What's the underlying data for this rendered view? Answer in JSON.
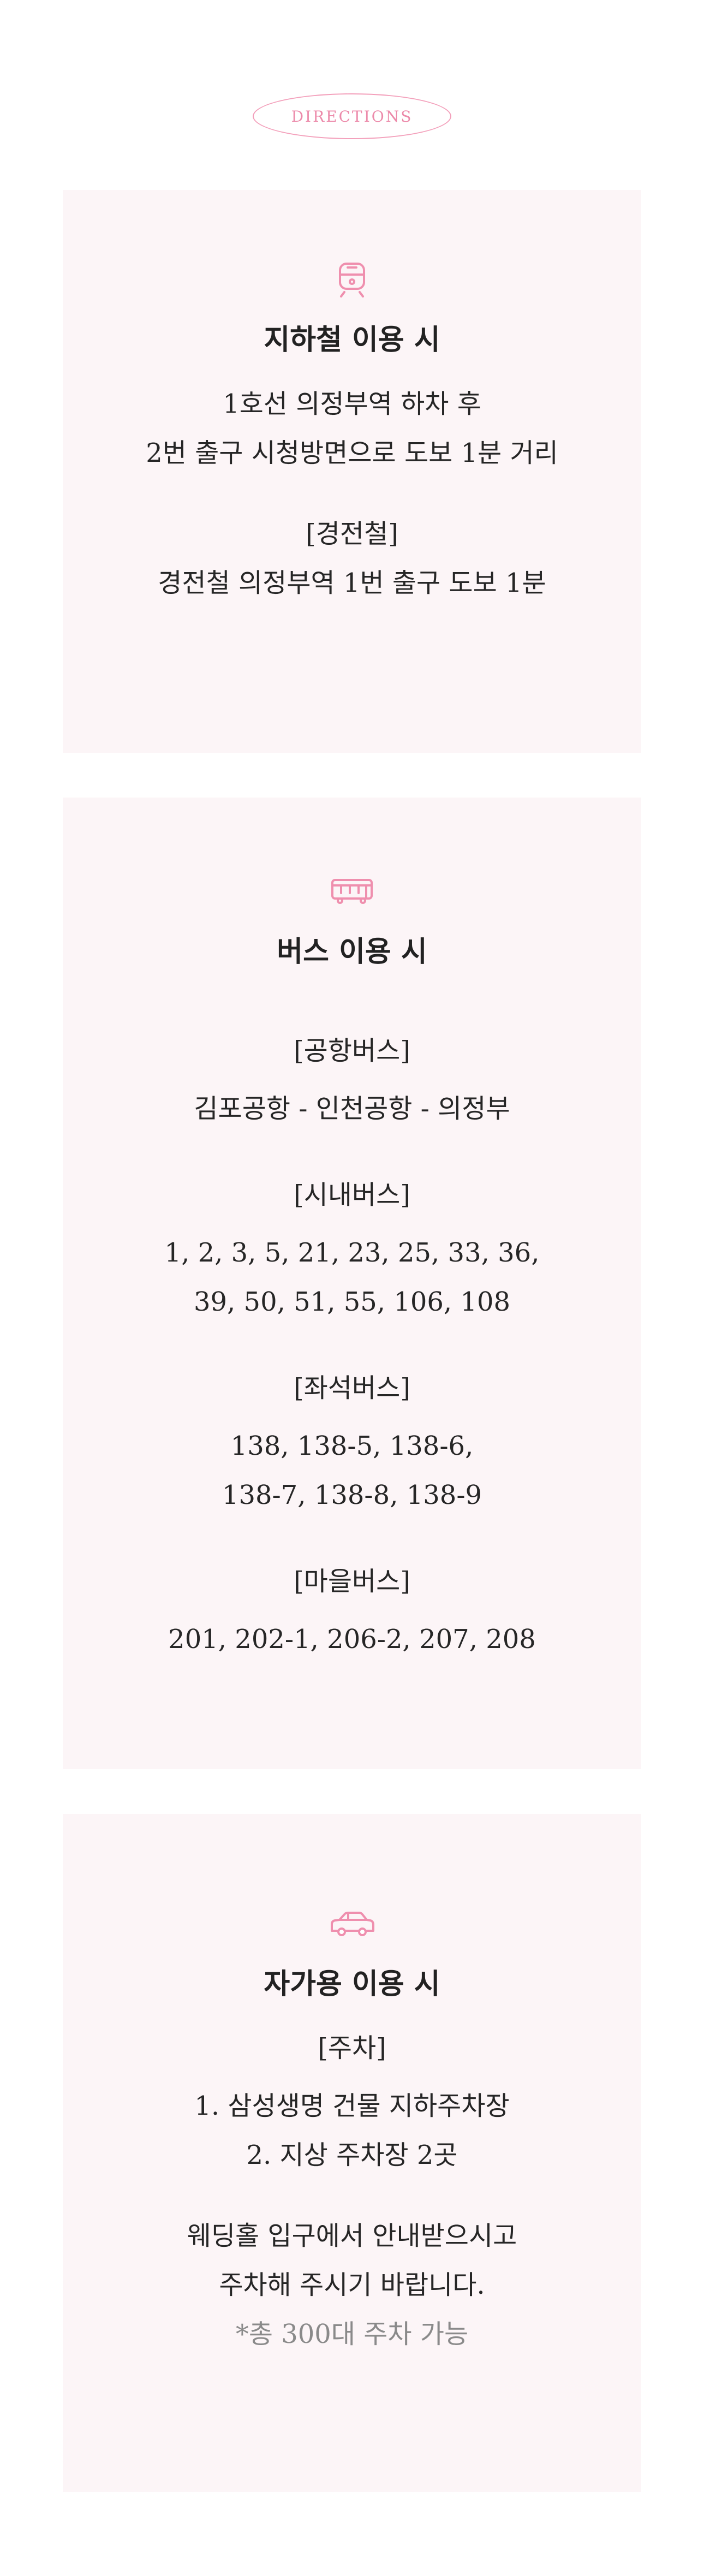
{
  "header": {
    "badge_label": "DIRECTIONS"
  },
  "colors": {
    "accent": "#ef8fae",
    "card_bg": "#fcf5f7",
    "note_text": "#8a8a8a"
  },
  "subway": {
    "icon": "train-icon",
    "title": "지하철 이용 시",
    "line1": "1호선 의정부역 하차 후",
    "line2": "2번 출구 시청방면으로 도보 1분 거리",
    "light_rail_heading": "[경전철]",
    "light_rail_line": "경전철 의정부역 1번 출구 도보 1분"
  },
  "bus": {
    "icon": "bus-icon",
    "title": "버스 이용 시",
    "airport_heading": "[공항버스]",
    "airport_line": "김포공항 - 인천공항 - 의정부",
    "city_heading": "[시내버스]",
    "city_line1": "1, 2, 3, 5, 21, 23, 25, 33, 36,",
    "city_line2": "39, 50, 51, 55, 106, 108",
    "seat_heading": "[좌석버스]",
    "seat_line1": "138, 138-5, 138-6,",
    "seat_line2": "138-7, 138-8, 138-9",
    "village_heading": "[마을버스]",
    "village_line": "201, 202-1, 206-2, 207, 208"
  },
  "car": {
    "icon": "car-icon",
    "title": "자가용 이용 시",
    "parking_heading": "[주차]",
    "parking_line1": "1. 삼성생명 건물 지하주차장",
    "parking_line2": "2. 지상 주차장 2곳",
    "guide_line1": "웨딩홀 입구에서 안내받으시고",
    "guide_line2": "주차해 주시기 바랍니다.",
    "note": "*총 300대 주차 가능"
  }
}
